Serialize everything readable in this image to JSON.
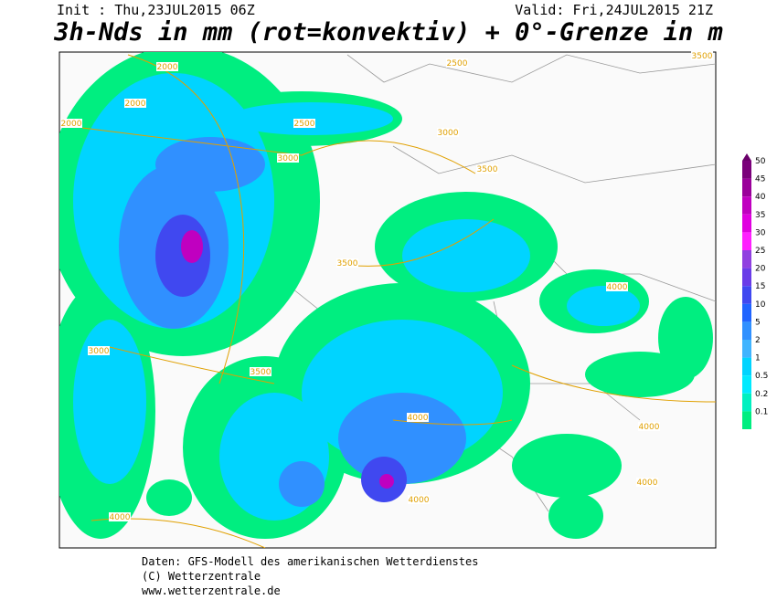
{
  "header": {
    "init": "Init : Thu,23JUL2015 06Z",
    "valid": "Valid: Fri,24JUL2015 21Z",
    "title": "3h-Nds in mm (rot=konvektiv) + 0°-Grenze in m"
  },
  "legend": {
    "items": [
      {
        "label": "50",
        "color": "#7a007a"
      },
      {
        "label": "45",
        "color": "#9a009a"
      },
      {
        "label": "40",
        "color": "#c000c0"
      },
      {
        "label": "35",
        "color": "#e000e0"
      },
      {
        "label": "30",
        "color": "#ff20ff"
      },
      {
        "label": "25",
        "color": "#9040e0"
      },
      {
        "label": "20",
        "color": "#6a3ce8"
      },
      {
        "label": "15",
        "color": "#4048f0"
      },
      {
        "label": "10",
        "color": "#2064ff"
      },
      {
        "label": "5",
        "color": "#3090ff"
      },
      {
        "label": "2",
        "color": "#40b4ff"
      },
      {
        "label": "1",
        "color": "#00d4ff"
      },
      {
        "label": "0.5",
        "color": "#00eaff"
      },
      {
        "label": "0.2",
        "color": "#00f0c0"
      },
      {
        "label": "0.1",
        "color": "#00ee80"
      }
    ]
  },
  "contour_labels": [
    "2000",
    "2000",
    "2000",
    "2500",
    "2500",
    "3000",
    "3000",
    "3500",
    "3500",
    "3500",
    "3000",
    "3500",
    "4000",
    "4000",
    "4000",
    "4000",
    "4000",
    "4000"
  ],
  "footer": {
    "line1": "Daten: GFS-Modell des amerikanischen Wetterdienstes",
    "line2": "(C) Wetterzentrale",
    "line3": "www.wetterzentrale.de"
  }
}
